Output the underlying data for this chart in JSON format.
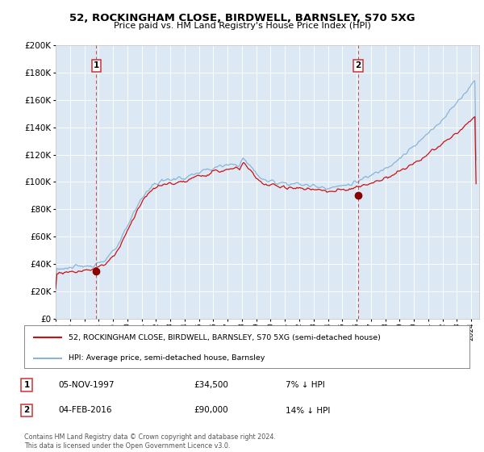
{
  "title": "52, ROCKINGHAM CLOSE, BIRDWELL, BARNSLEY, S70 5XG",
  "subtitle": "Price paid vs. HM Land Registry's House Price Index (HPI)",
  "legend_line1": "52, ROCKINGHAM CLOSE, BIRDWELL, BARNSLEY, S70 5XG (semi-detached house)",
  "legend_line2": "HPI: Average price, semi-detached house, Barnsley",
  "transaction1_date": "05-NOV-1997",
  "transaction1_price": 34500,
  "transaction1_hpi": "7% ↓ HPI",
  "transaction2_date": "04-FEB-2016",
  "transaction2_price": 90000,
  "transaction2_hpi": "14% ↓ HPI",
  "footer": "Contains HM Land Registry data © Crown copyright and database right 2024.\nThis data is licensed under the Open Government Licence v3.0.",
  "plot_bg_color": "#dce9f5",
  "hpi_line_color": "#8ab4d8",
  "price_line_color": "#cc1111",
  "dashed_line_color": "#cc3333",
  "marker_color": "#880000",
  "ylim": [
    0,
    200000
  ],
  "yticks": [
    0,
    20000,
    40000,
    60000,
    80000,
    100000,
    120000,
    140000,
    160000,
    180000,
    200000
  ],
  "transaction1_year": 1997.84,
  "transaction2_year": 2016.09
}
